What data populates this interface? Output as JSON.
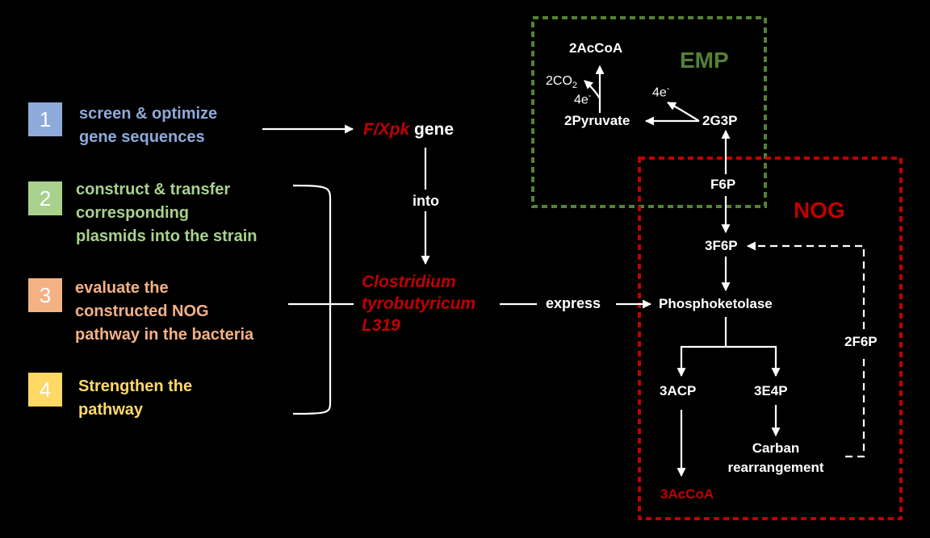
{
  "colors": {
    "step1": "#8eaadb",
    "step2": "#a9d18e",
    "step3": "#f4b183",
    "step4": "#ffd966",
    "emp": "#548235",
    "nog": "#c00000",
    "organism": "#c00000"
  },
  "steps": [
    {
      "num": "1",
      "line1": "screen & optimize",
      "line2": "gene sequences",
      "line3": ""
    },
    {
      "num": "2",
      "line1": "construct & transfer",
      "line2": "corresponding",
      "line3": "plasmids into the strain"
    },
    {
      "num": "3",
      "line1": "evaluate the",
      "line2": "constructed NOG",
      "line3": "pathway in the bacteria"
    },
    {
      "num": "4",
      "line1": "Strengthen the",
      "line2": "pathway",
      "line3": ""
    }
  ],
  "gene": {
    "name": "F/Xpk",
    "suffix": " gene"
  },
  "into_label": "into",
  "organism": {
    "line1": "Clostridium",
    "line2": "tyrobutyricum",
    "line3": "L319"
  },
  "express_label": "express",
  "emp": {
    "title": "EMP",
    "acoa": "2AcCoA",
    "co2": "2CO",
    "co2_sub": "2",
    "e_left": "4e",
    "e_left_sup": "-",
    "e_right": "4e",
    "e_right_sup": "-",
    "pyruvate": "2Pyruvate",
    "g3p": "2G3P"
  },
  "nog": {
    "title": "NOG",
    "f6p": "F6P",
    "f3p": "3F6P",
    "phospho": "Phosphoketolase",
    "acp": "3ACP",
    "e4p": "3E4P",
    "carban1": "Carban",
    "carban2": "rearrangement",
    "acoa3": "3AcCoA",
    "f2p": "2F6P"
  }
}
